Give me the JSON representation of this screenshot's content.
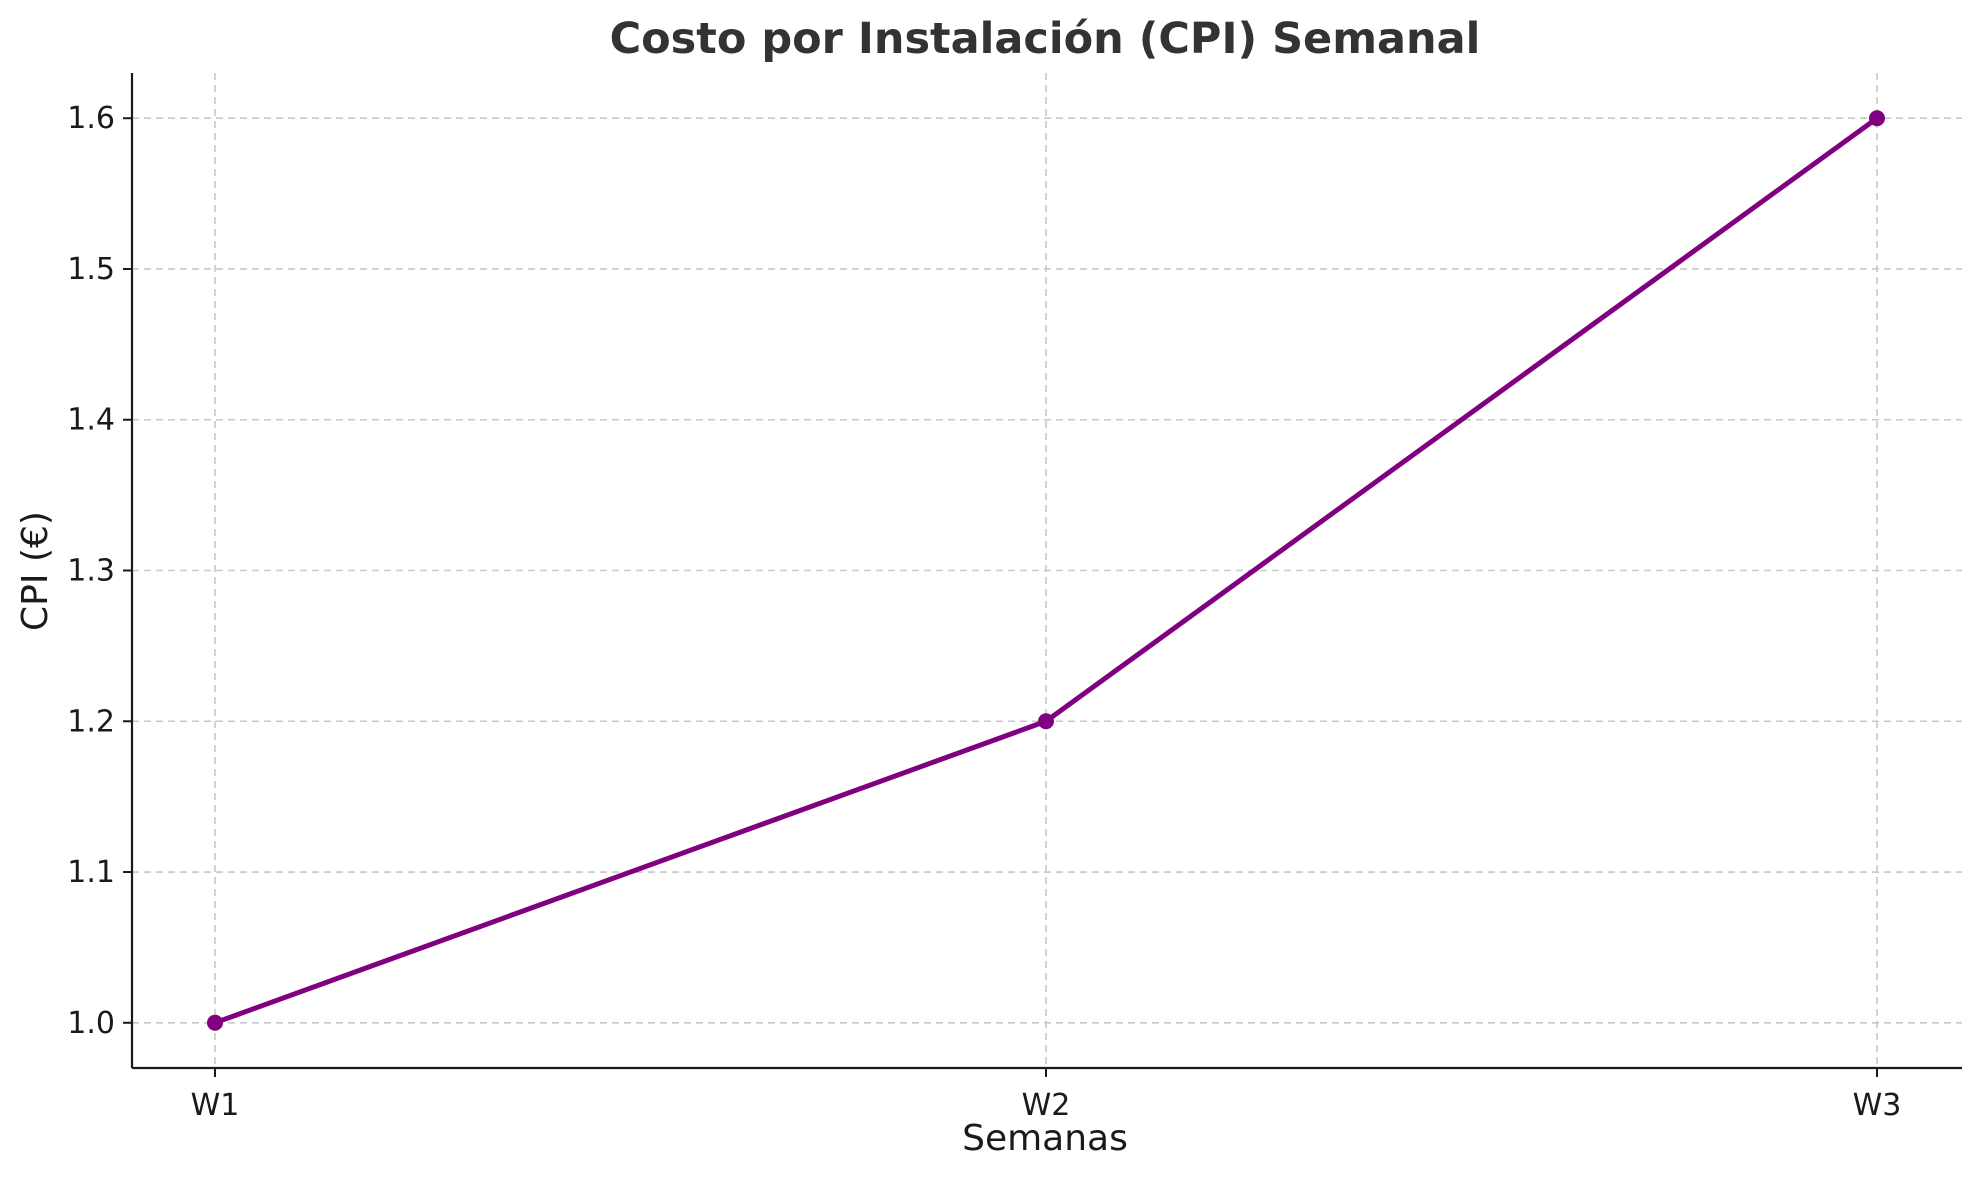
{
  "chart_data": {
    "type": "line",
    "title": "Costo por Instalación (CPI) Semanal",
    "xlabel": "Semanas",
    "ylabel": "CPI (€)",
    "categories": [
      "W1",
      "W2",
      "W3"
    ],
    "series": [
      {
        "values": [
          1.0,
          1.2,
          1.6
        ],
        "color": "#800080",
        "marker": "circle"
      }
    ],
    "yticks": [
      "1.0",
      "1.1",
      "1.2",
      "1.3",
      "1.4",
      "1.5",
      "1.6"
    ],
    "ylim": [
      0.97,
      1.63
    ],
    "grid": true,
    "grid_style": "dashed",
    "legend": "none"
  }
}
